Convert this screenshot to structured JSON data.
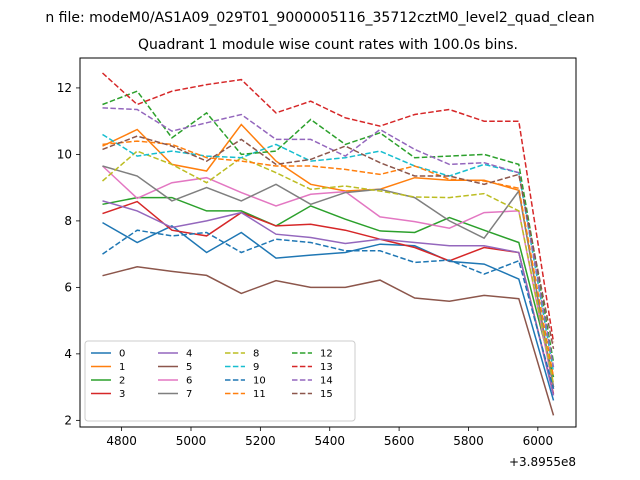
{
  "figure": {
    "suptitle": "n file: modeM0/AS1A09_029T01_9000005116_35712cztM0_level2_quad_clean",
    "offset_label": "+3.8955e8"
  },
  "chart_data": {
    "type": "line",
    "title": "Quadrant 1 module wise count rates with 100.0s bins.",
    "xlabel": "",
    "ylabel": "",
    "x_offset": 389550000,
    "x": [
      389554745,
      389554845,
      389554945,
      389555045,
      389555145,
      389555245,
      389555345,
      389555445,
      389555545,
      389555645,
      389555745,
      389555845,
      389555945,
      389556045
    ],
    "xlim": [
      389554680,
      389556110
    ],
    "ylim": [
      1.8,
      12.9
    ],
    "xticks": [
      389554800,
      389555000,
      389555200,
      389555400,
      389555600,
      389555800,
      389556000
    ],
    "xtick_labels": [
      "4800",
      "5000",
      "5200",
      "5400",
      "5600",
      "5800",
      "6000"
    ],
    "yticks": [
      2,
      4,
      6,
      8,
      10,
      12
    ],
    "ytick_labels": [
      "2",
      "4",
      "6",
      "8",
      "10",
      "12"
    ],
    "grid": false,
    "legend": {
      "placement": "lower-left",
      "columns": 4
    },
    "series": [
      {
        "name": "0",
        "color": "#1f77b4",
        "dash": "solid",
        "values": [
          7.95,
          7.35,
          7.85,
          7.05,
          7.65,
          6.88,
          6.97,
          7.05,
          7.3,
          7.25,
          6.78,
          6.7,
          6.25,
          2.6
        ]
      },
      {
        "name": "1",
        "color": "#ff7f0e",
        "dash": "solid",
        "values": [
          10.25,
          10.75,
          9.7,
          9.5,
          10.9,
          9.8,
          9.1,
          8.9,
          8.95,
          9.3,
          9.22,
          9.22,
          8.92,
          3.0
        ]
      },
      {
        "name": "2",
        "color": "#2ca02c",
        "dash": "solid",
        "values": [
          8.5,
          8.7,
          8.7,
          8.3,
          8.3,
          7.85,
          8.45,
          8.05,
          7.7,
          7.65,
          8.1,
          7.72,
          7.35,
          3.3
        ]
      },
      {
        "name": "3",
        "color": "#d62728",
        "dash": "solid",
        "values": [
          8.22,
          8.58,
          7.72,
          7.55,
          8.25,
          7.85,
          7.9,
          7.72,
          7.45,
          7.2,
          6.8,
          7.2,
          7.05,
          2.8
        ]
      },
      {
        "name": "4",
        "color": "#9467bd",
        "dash": "solid",
        "values": [
          8.6,
          8.3,
          7.8,
          8.0,
          8.25,
          7.6,
          7.5,
          7.32,
          7.45,
          7.35,
          7.25,
          7.25,
          7.05,
          2.75
        ]
      },
      {
        "name": "5",
        "color": "#8c564b",
        "dash": "solid",
        "values": [
          6.35,
          6.62,
          6.48,
          6.36,
          5.82,
          6.2,
          6.0,
          6.0,
          6.22,
          5.68,
          5.58,
          5.76,
          5.66,
          2.15
        ]
      },
      {
        "name": "6",
        "color": "#e377c2",
        "dash": "solid",
        "values": [
          9.65,
          8.68,
          9.15,
          9.3,
          8.85,
          8.45,
          8.8,
          8.88,
          8.12,
          7.98,
          7.78,
          8.25,
          8.3,
          2.95
        ]
      },
      {
        "name": "7",
        "color": "#7f7f7f",
        "dash": "solid",
        "values": [
          9.65,
          9.35,
          8.6,
          9.0,
          8.6,
          9.1,
          8.5,
          8.85,
          8.95,
          8.7,
          8.0,
          7.48,
          8.9,
          3.0
        ]
      },
      {
        "name": "8",
        "color": "#bcbd22",
        "dash": "dashed",
        "values": [
          9.2,
          10.1,
          9.7,
          9.15,
          9.9,
          9.45,
          8.95,
          9.05,
          8.9,
          8.72,
          8.7,
          8.82,
          8.3,
          3.1
        ]
      },
      {
        "name": "9",
        "color": "#17becf",
        "dash": "dashed",
        "values": [
          10.6,
          9.95,
          10.1,
          9.95,
          9.9,
          10.3,
          9.8,
          9.9,
          10.1,
          9.65,
          9.35,
          9.7,
          9.45,
          3.45
        ]
      },
      {
        "name": "10",
        "color": "#1f77b4",
        "dash": "dashed",
        "values": [
          7.0,
          7.72,
          7.55,
          7.65,
          7.05,
          7.45,
          7.35,
          7.1,
          7.1,
          6.75,
          6.82,
          6.4,
          6.8,
          2.95
        ]
      },
      {
        "name": "11",
        "color": "#ff7f0e",
        "dash": "dashed",
        "values": [
          10.3,
          10.4,
          10.3,
          9.9,
          9.8,
          9.65,
          9.65,
          9.55,
          9.4,
          9.65,
          9.25,
          9.2,
          8.98,
          3.3
        ]
      },
      {
        "name": "12",
        "color": "#2ca02c",
        "dash": "dashed",
        "values": [
          11.5,
          11.9,
          10.5,
          11.25,
          10.0,
          10.1,
          11.05,
          10.3,
          10.65,
          9.9,
          9.95,
          10.0,
          9.7,
          3.75
        ]
      },
      {
        "name": "13",
        "color": "#d62728",
        "dash": "dashed",
        "values": [
          12.45,
          11.5,
          11.9,
          12.1,
          12.25,
          11.25,
          11.6,
          11.1,
          10.85,
          11.2,
          11.35,
          11.0,
          11.0,
          4.35
        ]
      },
      {
        "name": "14",
        "color": "#9467bd",
        "dash": "dashed",
        "values": [
          11.4,
          11.35,
          10.7,
          10.95,
          11.2,
          10.45,
          10.45,
          9.95,
          10.75,
          10.15,
          9.7,
          9.75,
          9.45,
          3.6
        ]
      },
      {
        "name": "15",
        "color": "#8c564b",
        "dash": "dashed",
        "values": [
          10.15,
          10.55,
          10.25,
          9.8,
          10.45,
          9.7,
          9.85,
          10.25,
          9.75,
          9.35,
          9.35,
          9.1,
          9.4,
          4.15
        ]
      }
    ]
  }
}
